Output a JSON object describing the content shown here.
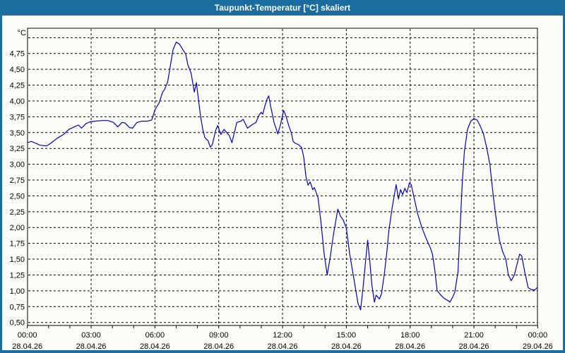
{
  "window": {
    "title": "Taupunkt-Temperatur [°C] skaliert",
    "titlebar_color": "#1A6C9E",
    "border_color": "#1A6C9E",
    "client_background": "#FCFDF7"
  },
  "chart_data": {
    "type": "line",
    "title": "Taupunkt-Temperatur [°C] skaliert",
    "ylabel": "°C",
    "ylim": [
      0.5,
      5.0
    ],
    "ytick_step": 0.25,
    "grid": "dashed",
    "legend": "none",
    "line_color": "#0000C8",
    "frame_color": "#000000",
    "grid_color": "#000000",
    "y_ticks": [
      {
        "value": 0.5,
        "label": "0,50"
      },
      {
        "value": 0.75,
        "label": "0,75"
      },
      {
        "value": 1.0,
        "label": "1,00"
      },
      {
        "value": 1.25,
        "label": "1,25"
      },
      {
        "value": 1.5,
        "label": "1,50"
      },
      {
        "value": 1.75,
        "label": "1,75"
      },
      {
        "value": 2.0,
        "label": "2,00"
      },
      {
        "value": 2.25,
        "label": "2,25"
      },
      {
        "value": 2.5,
        "label": "2,50"
      },
      {
        "value": 2.75,
        "label": "2,75"
      },
      {
        "value": 3.0,
        "label": "3,00"
      },
      {
        "value": 3.25,
        "label": "3,25"
      },
      {
        "value": 3.5,
        "label": "3,50"
      },
      {
        "value": 3.75,
        "label": "3,75"
      },
      {
        "value": 4.0,
        "label": "4,00"
      },
      {
        "value": 4.25,
        "label": "4,25"
      },
      {
        "value": 4.5,
        "label": "4,50"
      },
      {
        "value": 4.75,
        "label": "4,75"
      }
    ],
    "xlim_hours": [
      0,
      24
    ],
    "minor_tick_hours": 1,
    "x_ticks": [
      {
        "hour": 0,
        "time": "00:00",
        "date": "28.04.26"
      },
      {
        "hour": 3,
        "time": "03:00",
        "date": "28.04.26"
      },
      {
        "hour": 6,
        "time": "06:00",
        "date": "28.04.26"
      },
      {
        "hour": 9,
        "time": "09:00",
        "date": "28.04.26"
      },
      {
        "hour": 12,
        "time": "12:00",
        "date": "28.04.26"
      },
      {
        "hour": 15,
        "time": "15:00",
        "date": "28.04.26"
      },
      {
        "hour": 18,
        "time": "18:00",
        "date": "28.04.26"
      },
      {
        "hour": 21,
        "time": "21:00",
        "date": "28.04.26"
      },
      {
        "hour": 24,
        "time": "00:00",
        "date": "29.04.26"
      }
    ],
    "series": [
      {
        "name": "Taupunkt-Temperatur",
        "points": [
          [
            0,
            3.34
          ],
          [
            0.2,
            3.36
          ],
          [
            0.4,
            3.33
          ],
          [
            0.6,
            3.3
          ],
          [
            0.9,
            3.29
          ],
          [
            1.1,
            3.33
          ],
          [
            1.4,
            3.41
          ],
          [
            1.7,
            3.47
          ],
          [
            1.95,
            3.55
          ],
          [
            2.15,
            3.58
          ],
          [
            2.4,
            3.62
          ],
          [
            2.55,
            3.57
          ],
          [
            2.75,
            3.64
          ],
          [
            2.95,
            3.67
          ],
          [
            3.2,
            3.68
          ],
          [
            3.5,
            3.69
          ],
          [
            3.8,
            3.69
          ],
          [
            4.05,
            3.66
          ],
          [
            4.25,
            3.59
          ],
          [
            4.45,
            3.66
          ],
          [
            4.6,
            3.65
          ],
          [
            4.8,
            3.58
          ],
          [
            4.95,
            3.57
          ],
          [
            5.15,
            3.66
          ],
          [
            5.4,
            3.68
          ],
          [
            5.65,
            3.68
          ],
          [
            5.85,
            3.7
          ],
          [
            6,
            3.86
          ],
          [
            6.2,
            3.97
          ],
          [
            6.35,
            4.13
          ],
          [
            6.45,
            4.18
          ],
          [
            6.6,
            4.3
          ],
          [
            6.75,
            4.61
          ],
          [
            6.85,
            4.81
          ],
          [
            7,
            4.93
          ],
          [
            7.15,
            4.9
          ],
          [
            7.35,
            4.79
          ],
          [
            7.45,
            4.74
          ],
          [
            7.55,
            4.57
          ],
          [
            7.7,
            4.44
          ],
          [
            7.8,
            4.24
          ],
          [
            7.85,
            4.14
          ],
          [
            7.95,
            4.29
          ],
          [
            8.05,
            4.01
          ],
          [
            8.15,
            3.75
          ],
          [
            8.25,
            3.55
          ],
          [
            8.35,
            3.42
          ],
          [
            8.5,
            3.37
          ],
          [
            8.6,
            3.27
          ],
          [
            8.7,
            3.31
          ],
          [
            8.85,
            3.53
          ],
          [
            8.95,
            3.61
          ],
          [
            9.1,
            3.47
          ],
          [
            9.25,
            3.55
          ],
          [
            9.35,
            3.51
          ],
          [
            9.5,
            3.45
          ],
          [
            9.62,
            3.34
          ],
          [
            9.85,
            3.66
          ],
          [
            10.05,
            3.68
          ],
          [
            10.15,
            3.71
          ],
          [
            10.35,
            3.57
          ],
          [
            10.55,
            3.62
          ],
          [
            10.75,
            3.66
          ],
          [
            10.9,
            3.78
          ],
          [
            11,
            3.82
          ],
          [
            11.07,
            3.79
          ],
          [
            11.17,
            3.92
          ],
          [
            11.27,
            4.03
          ],
          [
            11.35,
            4.08
          ],
          [
            11.45,
            3.9
          ],
          [
            11.6,
            3.66
          ],
          [
            11.78,
            3.48
          ],
          [
            11.9,
            3.62
          ],
          [
            12.05,
            3.85
          ],
          [
            12.15,
            3.77
          ],
          [
            12.3,
            3.6
          ],
          [
            12.4,
            3.51
          ],
          [
            12.5,
            3.36
          ],
          [
            12.6,
            3.33
          ],
          [
            12.75,
            3.31
          ],
          [
            12.9,
            3.26
          ],
          [
            13,
            3.1
          ],
          [
            13.1,
            2.8
          ],
          [
            13.2,
            2.67
          ],
          [
            13.3,
            2.72
          ],
          [
            13.42,
            2.6
          ],
          [
            13.5,
            2.63
          ],
          [
            13.67,
            2.47
          ],
          [
            13.8,
            2.1
          ],
          [
            13.95,
            1.6
          ],
          [
            14.1,
            1.25
          ],
          [
            14.25,
            1.55
          ],
          [
            14.4,
            1.9
          ],
          [
            14.6,
            2.29
          ],
          [
            14.72,
            2.18
          ],
          [
            14.85,
            2.12
          ],
          [
            15,
            1.99
          ],
          [
            15.15,
            1.6
          ],
          [
            15.3,
            1.3
          ],
          [
            15.45,
            1
          ],
          [
            15.55,
            0.8
          ],
          [
            15.67,
            0.7
          ],
          [
            15.8,
            1.1
          ],
          [
            15.9,
            1.45
          ],
          [
            16,
            1.8
          ],
          [
            16.1,
            1.48
          ],
          [
            16.2,
            1.1
          ],
          [
            16.32,
            0.82
          ],
          [
            16.4,
            0.93
          ],
          [
            16.48,
            0.9
          ],
          [
            16.55,
            0.87
          ],
          [
            16.65,
            0.95
          ],
          [
            16.78,
            1.25
          ],
          [
            16.9,
            1.6
          ],
          [
            17,
            1.95
          ],
          [
            17.15,
            2.3
          ],
          [
            17.34,
            2.68
          ],
          [
            17.45,
            2.45
          ],
          [
            17.55,
            2.6
          ],
          [
            17.65,
            2.52
          ],
          [
            17.75,
            2.62
          ],
          [
            17.85,
            2.55
          ],
          [
            17.96,
            2.7
          ],
          [
            18.05,
            2.68
          ],
          [
            18.2,
            2.45
          ],
          [
            18.35,
            2.22
          ],
          [
            18.55,
            2
          ],
          [
            18.75,
            1.83
          ],
          [
            18.95,
            1.68
          ],
          [
            19.05,
            1.58
          ],
          [
            19.15,
            1.35
          ],
          [
            19.27,
            1
          ],
          [
            19.45,
            0.93
          ],
          [
            19.6,
            0.88
          ],
          [
            19.8,
            0.84
          ],
          [
            19.87,
            0.82
          ],
          [
            20,
            0.9
          ],
          [
            20.1,
            0.98
          ],
          [
            20.25,
            1.3
          ],
          [
            20.35,
            2
          ],
          [
            20.45,
            2.7
          ],
          [
            20.55,
            3.2
          ],
          [
            20.7,
            3.55
          ],
          [
            20.85,
            3.68
          ],
          [
            21,
            3.72
          ],
          [
            21.15,
            3.7
          ],
          [
            21.3,
            3.6
          ],
          [
            21.45,
            3.48
          ],
          [
            21.6,
            3.26
          ],
          [
            21.75,
            3
          ],
          [
            21.9,
            2.52
          ],
          [
            22,
            2.25
          ],
          [
            22.1,
            2
          ],
          [
            22.2,
            1.8
          ],
          [
            22.35,
            1.62
          ],
          [
            22.5,
            1.5
          ],
          [
            22.62,
            1.25
          ],
          [
            22.75,
            1.16
          ],
          [
            22.9,
            1.25
          ],
          [
            23.05,
            1.45
          ],
          [
            23.15,
            1.58
          ],
          [
            23.25,
            1.55
          ],
          [
            23.4,
            1.28
          ],
          [
            23.55,
            1.05
          ],
          [
            23.7,
            1.02
          ],
          [
            23.85,
            1.01
          ],
          [
            24,
            1.06
          ]
        ]
      }
    ]
  }
}
